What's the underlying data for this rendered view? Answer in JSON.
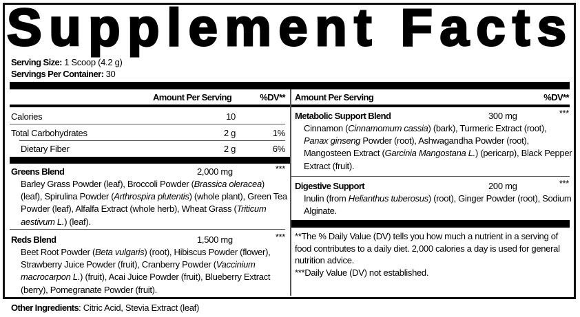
{
  "title": "Supplement Facts",
  "serving_size": {
    "label": "Serving Size:",
    "value": " 1 Scoop (4.2 g)"
  },
  "servings_per_container": {
    "label": "Servings Per Container:",
    "value": " 30"
  },
  "left": {
    "header": {
      "amount": "Amount Per Serving",
      "dv": "%DV**"
    },
    "rows": [
      {
        "name": "Calories",
        "amount": "10",
        "dv": ""
      },
      {
        "name": "Total Carbohydrates",
        "amount": "2 g",
        "dv": "1%"
      },
      {
        "name": "Dietary Fiber",
        "amount": "2 g",
        "dv": "6%"
      }
    ],
    "blends": [
      {
        "name": "Greens Blend",
        "amount": "2,000 mg",
        "dv": "***",
        "ingredients": [
          {
            "t": "Barley Grass Powder (leaf), Broccoli Powder ("
          },
          {
            "t": "Brassica oleracea",
            "i": true
          },
          {
            "t": ") (leaf), Spirulina Powder ("
          },
          {
            "t": "Arthrospira plutentis",
            "i": true
          },
          {
            "t": ") (whole plant), Green Tea Powder (leaf), Alfalfa Extract (whole herb), Wheat Grass ("
          },
          {
            "t": "Triticum aestivum L.",
            "i": true
          },
          {
            "t": ") (leaf)."
          }
        ]
      },
      {
        "name": "Reds Blend",
        "amount": "1,500 mg",
        "dv": "***",
        "ingredients": [
          {
            "t": "Beet Root Powder ("
          },
          {
            "t": "Beta vulgaris",
            "i": true
          },
          {
            "t": ") (root), Hibiscus Powder (flower), Strawberry Juice Powder (fruit), Cranberry Powder ("
          },
          {
            "t": "Vaccinium macrocarpon L.",
            "i": true
          },
          {
            "t": ") (fruit), Acai Juice Powder (fruit), Blueberry Extract (berry), Pomegranate Powder (fruit)."
          }
        ]
      }
    ]
  },
  "right": {
    "header": {
      "amount": "Amount Per Serving",
      "dv": "%DV**"
    },
    "blends": [
      {
        "name": "Metabolic Support Blend",
        "amount": "300 mg",
        "dv": "***",
        "ingredients": [
          {
            "t": "Cinnamon ("
          },
          {
            "t": "Cinnamomum cassia",
            "i": true
          },
          {
            "t": ") (bark), Turmeric Extract (root), "
          },
          {
            "t": "Panax ginseng",
            "i": true
          },
          {
            "t": " Powder (root), Ashwagandha Powder (root), Mangosteen Extract ("
          },
          {
            "t": "Garcinia Mangostana L.",
            "i": true
          },
          {
            "t": ") (pericarp), Black Pepper Extract (fruit)."
          }
        ]
      },
      {
        "name": "Digestive Support",
        "amount": "200 mg",
        "dv": "***",
        "ingredients": [
          {
            "t": "Inulin (from "
          },
          {
            "t": "Helianthus tuberosus",
            "i": true
          },
          {
            "t": ") (root), Ginger Powder (root), Sodium Alginate."
          }
        ]
      }
    ],
    "footnote_1": "**The % Daily Value (DV) tells you how much a nutrient in a serving of food contributes to a daily diet. 2,000 calories a day is used for general nutrition advice.",
    "footnote_2": "***Daily Value (DV) not established."
  },
  "other_ingredients": {
    "label": "Other Ingredients",
    "value": ": Citric Acid, Stevia Extract (leaf)"
  }
}
